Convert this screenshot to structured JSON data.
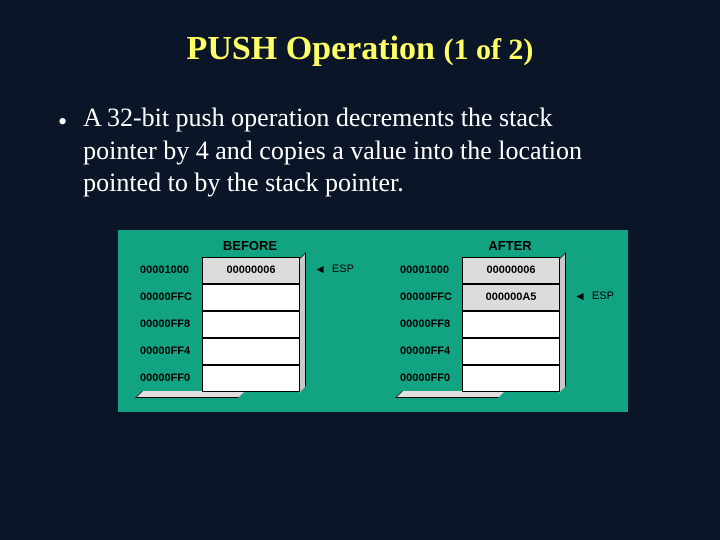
{
  "title_main": "PUSH Operation",
  "title_sub": "(1 of 2)",
  "bullet_text": "A 32-bit push operation decrements the stack pointer by 4 and copies a value into the location pointed to by the stack pointer.",
  "diagram": {
    "background_color": "#12a382",
    "cell_bg": "#ffffff",
    "cell_highlight_bg": "#dcdcdc",
    "cell_border": "#000000",
    "text_color": "#000000",
    "font_family": "Arial",
    "before": {
      "label": "BEFORE",
      "esp_label": "ESP",
      "esp_row": 0,
      "rows": [
        {
          "addr": "00001000",
          "value": "00000006",
          "highlight": true
        },
        {
          "addr": "00000FFC",
          "value": "",
          "highlight": false
        },
        {
          "addr": "00000FF8",
          "value": "",
          "highlight": false
        },
        {
          "addr": "00000FF4",
          "value": "",
          "highlight": false
        },
        {
          "addr": "00000FF0",
          "value": "",
          "highlight": false
        }
      ]
    },
    "after": {
      "label": "AFTER",
      "esp_label": "ESP",
      "esp_row": 1,
      "rows": [
        {
          "addr": "00001000",
          "value": "00000006",
          "highlight": true
        },
        {
          "addr": "00000FFC",
          "value": "000000A5",
          "highlight": true
        },
        {
          "addr": "00000FF8",
          "value": "",
          "highlight": false
        },
        {
          "addr": "00000FF4",
          "value": "",
          "highlight": false
        },
        {
          "addr": "00000FF0",
          "value": "",
          "highlight": false
        }
      ]
    }
  },
  "slide_bg": "#0a1528",
  "title_color": "#ffff66",
  "body_text_color": "#ffffff"
}
